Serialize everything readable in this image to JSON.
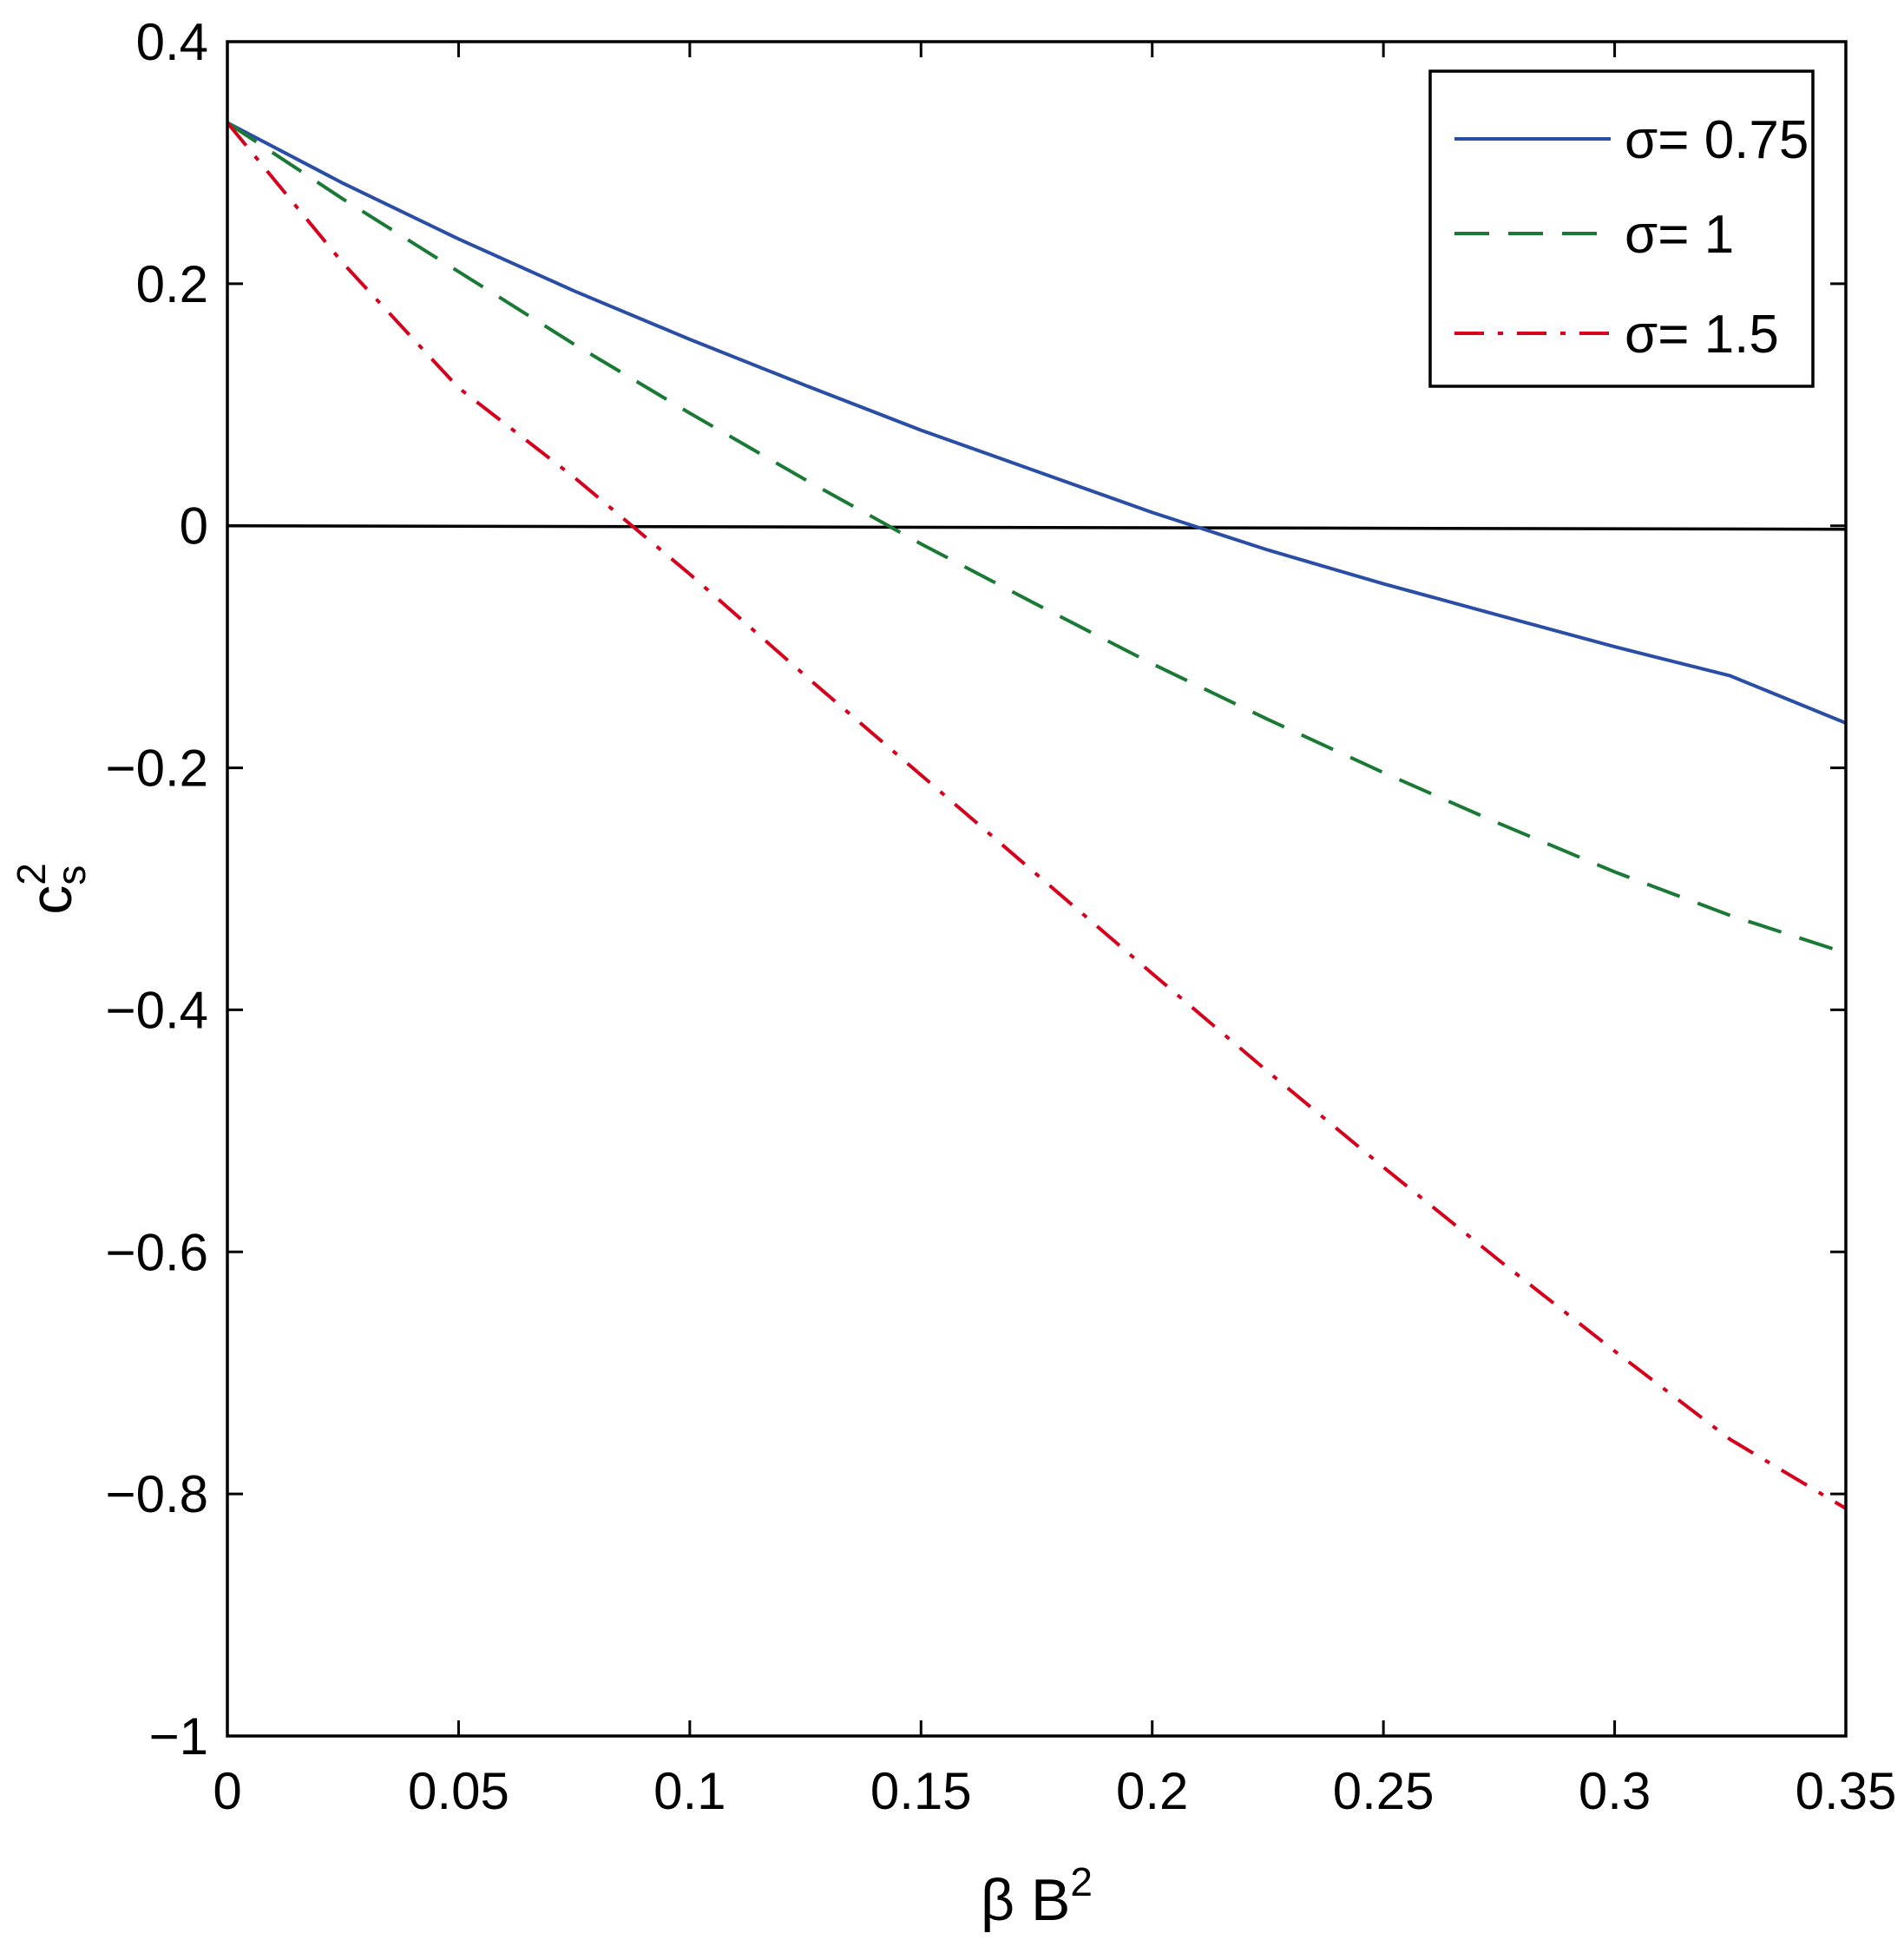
{
  "chart_data": {
    "type": "line",
    "title": "",
    "xlabel": {
      "base": "β B",
      "sup": "2"
    },
    "ylabel": {
      "base": "c",
      "sub": "s",
      "sup": "2"
    },
    "xlim": [
      0,
      0.35
    ],
    "ylim": [
      -1,
      0.4
    ],
    "xticks": [
      0,
      0.05,
      0.1,
      0.15,
      0.2,
      0.25,
      0.3,
      0.35
    ],
    "yticks": [
      -1,
      -0.8,
      -0.6,
      -0.4,
      -0.2,
      0,
      0.2,
      0.4
    ],
    "xtick_labels": [
      "0",
      "0.05",
      "0.1",
      "0.15",
      "0.2",
      "0.25",
      "0.3",
      "0.35"
    ],
    "ytick_labels": [
      "−1",
      "−0.8",
      "−0.6",
      "−0.4",
      "−0.2",
      "0",
      "0.2",
      "0.4"
    ],
    "grid": false,
    "legend_position": "top-right",
    "reference_line": {
      "y": 0,
      "color": "#000000"
    },
    "series": [
      {
        "name": "σ= 0.75",
        "color": "#2a4ea6",
        "style": "solid",
        "x": [
          0,
          0.025,
          0.05,
          0.075,
          0.1,
          0.125,
          0.15,
          0.175,
          0.2,
          0.225,
          0.25,
          0.275,
          0.3,
          0.325,
          0.35
        ],
        "y": [
          0.333,
          0.283,
          0.237,
          0.194,
          0.154,
          0.116,
          0.079,
          0.045,
          0.011,
          -0.02,
          -0.048,
          -0.074,
          -0.1,
          -0.124,
          -0.163
        ]
      },
      {
        "name": "σ= 1",
        "color": "#1a7a35",
        "style": "dashed",
        "x": [
          0,
          0.025,
          0.05,
          0.075,
          0.1,
          0.125,
          0.15,
          0.175,
          0.2,
          0.225,
          0.25,
          0.275,
          0.3,
          0.325,
          0.35
        ],
        "y": [
          0.333,
          0.27,
          0.21,
          0.15,
          0.093,
          0.038,
          -0.015,
          -0.065,
          -0.114,
          -0.16,
          -0.204,
          -0.246,
          -0.286,
          -0.322,
          -0.353
        ]
      },
      {
        "name": "σ= 1.5",
        "color": "#d6001c",
        "style": "dashdot",
        "x": [
          0,
          0.025,
          0.05,
          0.075,
          0.1,
          0.125,
          0.15,
          0.175,
          0.2,
          0.225,
          0.25,
          0.275,
          0.3,
          0.325,
          0.35
        ],
        "y": [
          0.333,
          0.217,
          0.114,
          0.04,
          -0.04,
          -0.124,
          -0.206,
          -0.288,
          -0.37,
          -0.451,
          -0.53,
          -0.607,
          -0.682,
          -0.755,
          -0.812
        ]
      }
    ]
  }
}
